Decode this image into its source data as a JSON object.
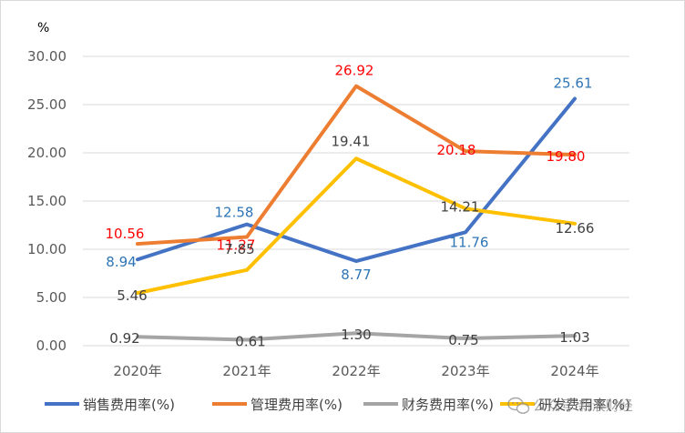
{
  "chart_data": {
    "type": "line",
    "unit_label": "%",
    "categories": [
      "2020年",
      "2021年",
      "2022年",
      "2023年",
      "2024年"
    ],
    "ylim": [
      0,
      30
    ],
    "yticks": [
      "0.00",
      "5.00",
      "10.00",
      "15.00",
      "20.00",
      "25.00",
      "30.00"
    ],
    "grid": true,
    "legend_position": "bottom",
    "series": [
      {
        "name": "销售费用率(%)",
        "color": "#4472C4",
        "label_color": "#2E75B6",
        "values": [
          8.94,
          12.58,
          8.77,
          11.76,
          25.61
        ],
        "labels": [
          "8.94",
          "12.58",
          "8.77",
          "11.76",
          "25.61"
        ]
      },
      {
        "name": "管理费用率(%)",
        "color": "#ED7D31",
        "label_color": "#FF0000",
        "values": [
          10.56,
          11.27,
          26.92,
          20.18,
          19.8
        ],
        "labels": [
          "10.56",
          "11.27",
          "26.92",
          "20.18",
          "19.80"
        ]
      },
      {
        "name": "财务费用率(%)",
        "color": "#A5A5A5",
        "label_color": "#404040",
        "values": [
          0.92,
          0.61,
          1.3,
          0.75,
          1.03
        ],
        "labels": [
          "0.92",
          "0.61",
          "1.30",
          "0.75",
          "1.03"
        ]
      },
      {
        "name": "研发费用率(%)",
        "color": "#FFC000",
        "label_color": "#404040",
        "values": [
          5.46,
          7.85,
          19.41,
          14.21,
          12.66
        ],
        "labels": [
          "5.46",
          "7.85",
          "19.41",
          "14.21",
          "12.66"
        ]
      }
    ]
  },
  "watermark": {
    "text": "公众号·新浪财经",
    "icon": "wechat-icon"
  }
}
